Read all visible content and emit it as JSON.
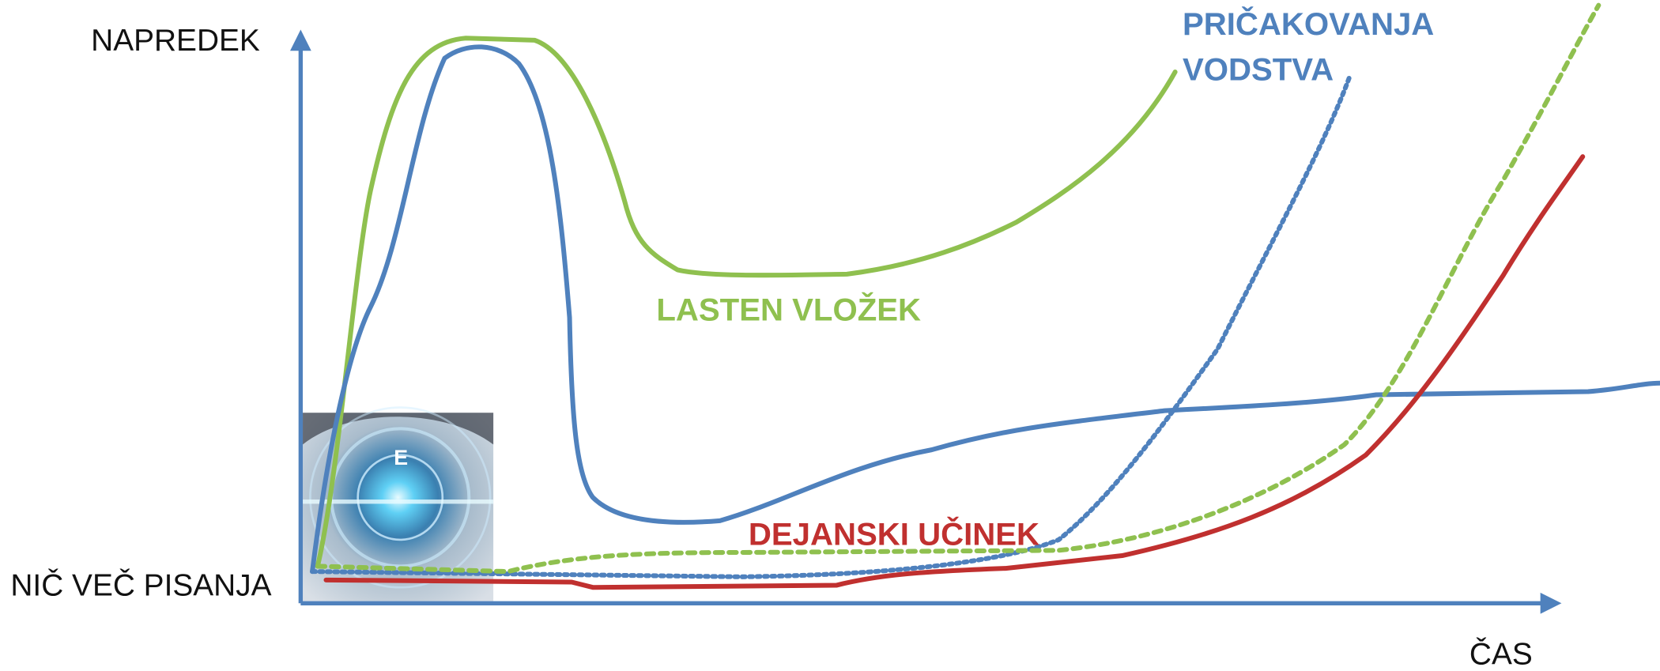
{
  "axes": {
    "y_label": "NAPREDEK",
    "origin_label": "NIČ VEČ PISANJA",
    "x_label": "ČAS"
  },
  "curves": [
    {
      "label_lines": [
        "PRIČAKOVANJA",
        "VODSTVA"
      ]
    },
    {
      "label": "LASTEN VLOŽEK"
    },
    {
      "label": "DEJANSKI UČINEK"
    }
  ]
}
